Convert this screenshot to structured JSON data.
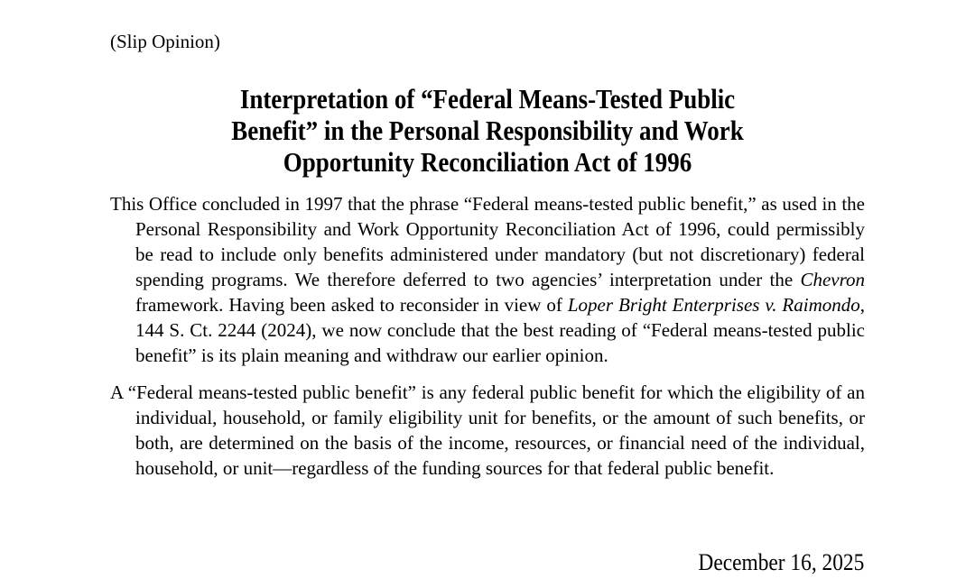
{
  "document": {
    "slip_label": "(Slip Opinion)",
    "title": {
      "lines": [
        "Interpretation of “Federal Means-Tested Public",
        "Benefit” in the Personal Responsibility and Work",
        "Opportunity Reconciliation Act of 1996"
      ]
    },
    "headnote_paragraphs": [
      {
        "segments": [
          {
            "text": "This Office concluded in 1997 that the phrase “Federal means-tested public benefit,” as used in the Personal Responsibility and Work Opportunity Reconciliation Act of 1996, could permissibly be read to include only benefits administered under mandatory (but not discretionary) federal spending programs. We therefore deferred to two agencies’ interpretation under the ",
            "italic": false
          },
          {
            "text": "Chevron",
            "italic": true
          },
          {
            "text": " framework. Having been asked to reconsider in view of ",
            "italic": false
          },
          {
            "text": "Loper Bright Enterprises v. Raimondo",
            "italic": true
          },
          {
            "text": ", 144 S. Ct. 2244 (2024), we now conclude that the best reading of “Federal means-tested public benefit” is its plain meaning and withdraw our earlier opinion.",
            "italic": false
          }
        ]
      },
      {
        "segments": [
          {
            "text": "A “Federal means-tested public benefit” is any federal public benefit for which the eligibility of an individual, household, or family eligibility unit for benefits, or the amount of such benefits, or both, are determined on the basis of the income, resources, or financial need of the individual, household, or unit—regardless of the funding sources for that federal public benefit.",
            "italic": false
          }
        ]
      }
    ],
    "date": "December 16, 2025",
    "colors": {
      "background": "#ffffff",
      "text": "#000000"
    }
  }
}
